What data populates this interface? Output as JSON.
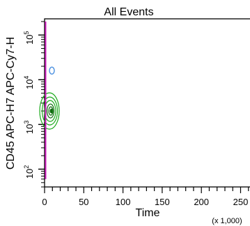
{
  "chart_data": {
    "type": "scatter",
    "title": "All Events",
    "xlabel": "Time",
    "xunit_label": "(x 1,000)",
    "ylabel": "CD45 APC-H7 APC-Cy7-H",
    "x_scale": "linear",
    "y_scale": "log",
    "xlim": [
      0,
      262
    ],
    "ylim": [
      40,
      230000
    ],
    "x_ticks": [
      {
        "value": 0,
        "label": "0"
      },
      {
        "value": 50,
        "label": "50"
      },
      {
        "value": 100,
        "label": "100"
      },
      {
        "value": 150,
        "label": "150"
      },
      {
        "value": 200,
        "label": "200"
      },
      {
        "value": 250,
        "label": "250"
      }
    ],
    "y_ticks": [
      {
        "exp": 2,
        "value": 100,
        "label": "10"
      },
      {
        "exp": 3,
        "value": 1000,
        "label": "10"
      },
      {
        "exp": 4,
        "value": 10000,
        "label": "10"
      },
      {
        "exp": 5,
        "value": 100000,
        "label": "10"
      }
    ],
    "populations": [
      {
        "name": "",
        "color": "#1aa91a",
        "x_center": 8,
        "y_center": 2000,
        "x_spread": 6,
        "y_spread_decades": 0.3,
        "kind": "contour"
      },
      {
        "name": "",
        "color": "#4a90e0",
        "x_center": 4,
        "y_center": 16000,
        "kind": "dot"
      },
      {
        "name": "",
        "color": "#d020c0",
        "x_range": [
          0,
          2
        ],
        "y_range": [
          60,
          200000
        ],
        "kind": "strip"
      }
    ],
    "grid": false,
    "legend": "none"
  },
  "colors": {
    "axis": "#000000",
    "background": "#ffffff",
    "contour_green": "#1aa91a",
    "dark_green": "#0d6e0d",
    "blue": "#4a90e0",
    "magenta": "#d020c0"
  }
}
